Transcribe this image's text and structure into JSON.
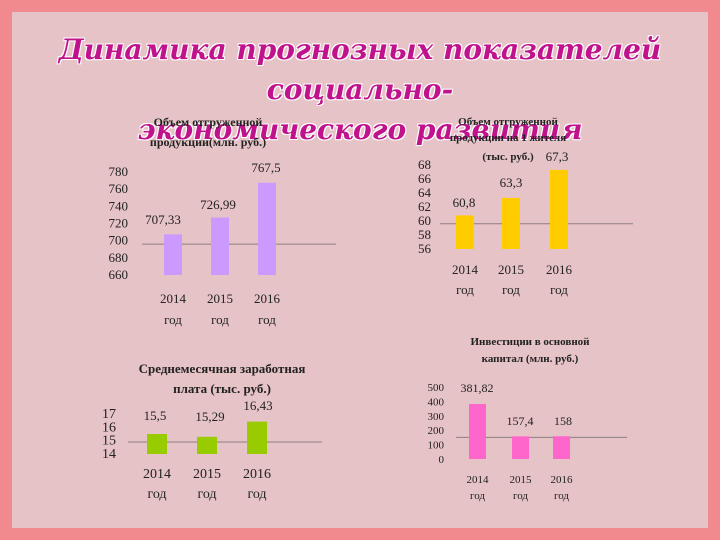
{
  "page": {
    "title_line1": "Динамика прогнозных показателей социально-",
    "title_line2": "экономического развития"
  },
  "chart_data": [
    {
      "type": "bar",
      "title": [
        "Объем отгруженной",
        "продукции(млн. руб.)"
      ],
      "categories": [
        [
          "2014",
          "год"
        ],
        [
          "2015",
          "год"
        ],
        [
          "2016",
          "год"
        ]
      ],
      "values": [
        707.33,
        726.99,
        767.5
      ],
      "value_labels": [
        "707,33",
        "726,99",
        "767,5"
      ],
      "yticks": [
        "780",
        "760",
        "740",
        "720",
        "700",
        "680",
        "660"
      ],
      "ylim": [
        660,
        780
      ],
      "grid": false,
      "color": "#cc99ff"
    },
    {
      "type": "bar",
      "title": [
        "Объем отгруженной",
        "продукции на 1 жителя",
        "(тыс. руб.)"
      ],
      "categories": [
        [
          "2014",
          "год"
        ],
        [
          "2015",
          "год"
        ],
        [
          "2016",
          "год"
        ]
      ],
      "values": [
        60.8,
        63.3,
        67.3
      ],
      "value_labels": [
        "60,8",
        "63,3",
        "67,3"
      ],
      "yticks": [
        "68",
        "66",
        "64",
        "62",
        "60",
        "58",
        "56"
      ],
      "ylim": [
        56,
        68
      ],
      "grid": false,
      "color": "#ffcc00"
    },
    {
      "type": "bar",
      "title": [
        "Среднемесячная заработная",
        "плата (тыс. руб.)"
      ],
      "categories": [
        [
          "2014",
          "год"
        ],
        [
          "2015",
          "год"
        ],
        [
          "2016",
          "год"
        ]
      ],
      "values": [
        15.5,
        15.29,
        16.43
      ],
      "value_labels": [
        "15,5",
        "15,29",
        "16,43"
      ],
      "yticks": [
        "17",
        "16",
        "15",
        "14"
      ],
      "ylim": [
        14,
        17
      ],
      "grid": false,
      "color": "#99cc00"
    },
    {
      "type": "bar",
      "title": [
        "Инвестиции в основной",
        "капитал (млн. руб.)"
      ],
      "categories": [
        [
          "2014",
          "год"
        ],
        [
          "2015",
          "год"
        ],
        [
          "2016",
          "год"
        ]
      ],
      "values": [
        381.82,
        157.4,
        158
      ],
      "value_labels": [
        "381,82",
        "157,4",
        "158"
      ],
      "yticks": [
        "500",
        "400",
        "300",
        "200",
        "100",
        "0"
      ],
      "ylim": [
        0,
        500
      ],
      "grid": false,
      "color": "#ff66cc"
    }
  ]
}
